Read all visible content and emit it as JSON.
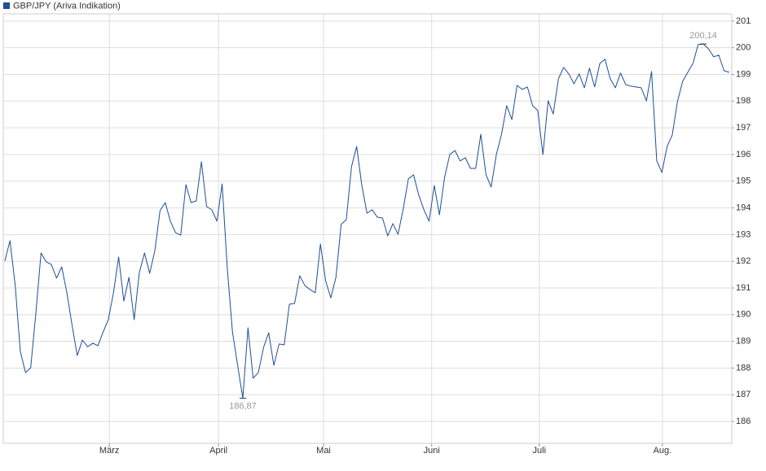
{
  "chart_data": {
    "type": "line",
    "series": [
      {
        "name": "GBP/JPY (Ariva Indikation)",
        "color": "#1f4e96",
        "values": [
          192.01,
          192.77,
          191.12,
          188.62,
          187.83,
          188.01,
          190.05,
          192.31,
          191.98,
          191.88,
          191.37,
          191.79,
          190.82,
          189.6,
          188.47,
          189.05,
          188.8,
          188.93,
          188.84,
          189.35,
          189.81,
          190.82,
          192.16,
          190.51,
          191.4,
          189.81,
          191.58,
          192.31,
          191.55,
          192.4,
          193.9,
          194.2,
          193.5,
          193.07,
          192.98,
          194.87,
          194.2,
          194.26,
          195.73,
          194.05,
          193.93,
          193.5,
          194.9,
          191.73,
          189.35,
          188.1,
          186.87,
          189.51,
          187.62,
          187.83,
          188.77,
          189.32,
          188.1,
          188.9,
          188.87,
          190.39,
          190.42,
          191.46,
          191.09,
          190.94,
          190.82,
          192.65,
          191.27,
          190.63,
          191.4,
          193.38,
          193.56,
          195.54,
          196.3,
          194.84,
          193.8,
          193.93,
          193.65,
          193.62,
          192.95,
          193.41,
          193.01,
          193.96,
          195.09,
          195.24,
          194.48,
          193.93,
          193.5,
          194.84,
          193.74,
          195.15,
          196.0,
          196.15,
          195.76,
          195.88,
          195.48,
          195.48,
          196.76,
          195.24,
          194.78,
          196.0,
          196.76,
          197.83,
          197.31,
          198.59,
          198.44,
          198.53,
          197.83,
          197.65,
          196.0,
          198.01,
          197.52,
          198.84,
          199.26,
          199.02,
          198.65,
          199.02,
          198.5,
          199.23,
          198.53,
          199.41,
          199.57,
          198.84,
          198.5,
          199.05,
          198.62,
          198.56,
          198.53,
          198.5,
          198.01,
          199.11,
          195.76,
          195.33,
          196.3,
          196.73,
          197.98,
          198.74,
          199.08,
          199.41,
          200.12,
          200.14,
          199.96,
          199.66,
          199.72,
          199.14,
          199.08
        ]
      }
    ],
    "xlim": [
      -0.3,
      140.5
    ],
    "xticks": [
      {
        "value": 20.2,
        "label": "März"
      },
      {
        "value": 41.3,
        "label": "April"
      },
      {
        "value": 61.6,
        "label": "Mai"
      },
      {
        "value": 82.5,
        "label": "Juni"
      },
      {
        "value": 103.3,
        "label": "Juli"
      },
      {
        "value": 127.1,
        "label": "Aug."
      }
    ],
    "ylim": [
      185.18,
      201.27
    ],
    "yticks": [
      186,
      187,
      188,
      189,
      190,
      191,
      192,
      193,
      194,
      195,
      196,
      197,
      198,
      199,
      200,
      201
    ],
    "annotations": [
      {
        "text": "186,87",
        "x": 46,
        "y": 186.87,
        "position": "below"
      },
      {
        "text": "200,14",
        "x": 135,
        "y": 200.14,
        "position": "above"
      }
    ],
    "grid": true
  }
}
